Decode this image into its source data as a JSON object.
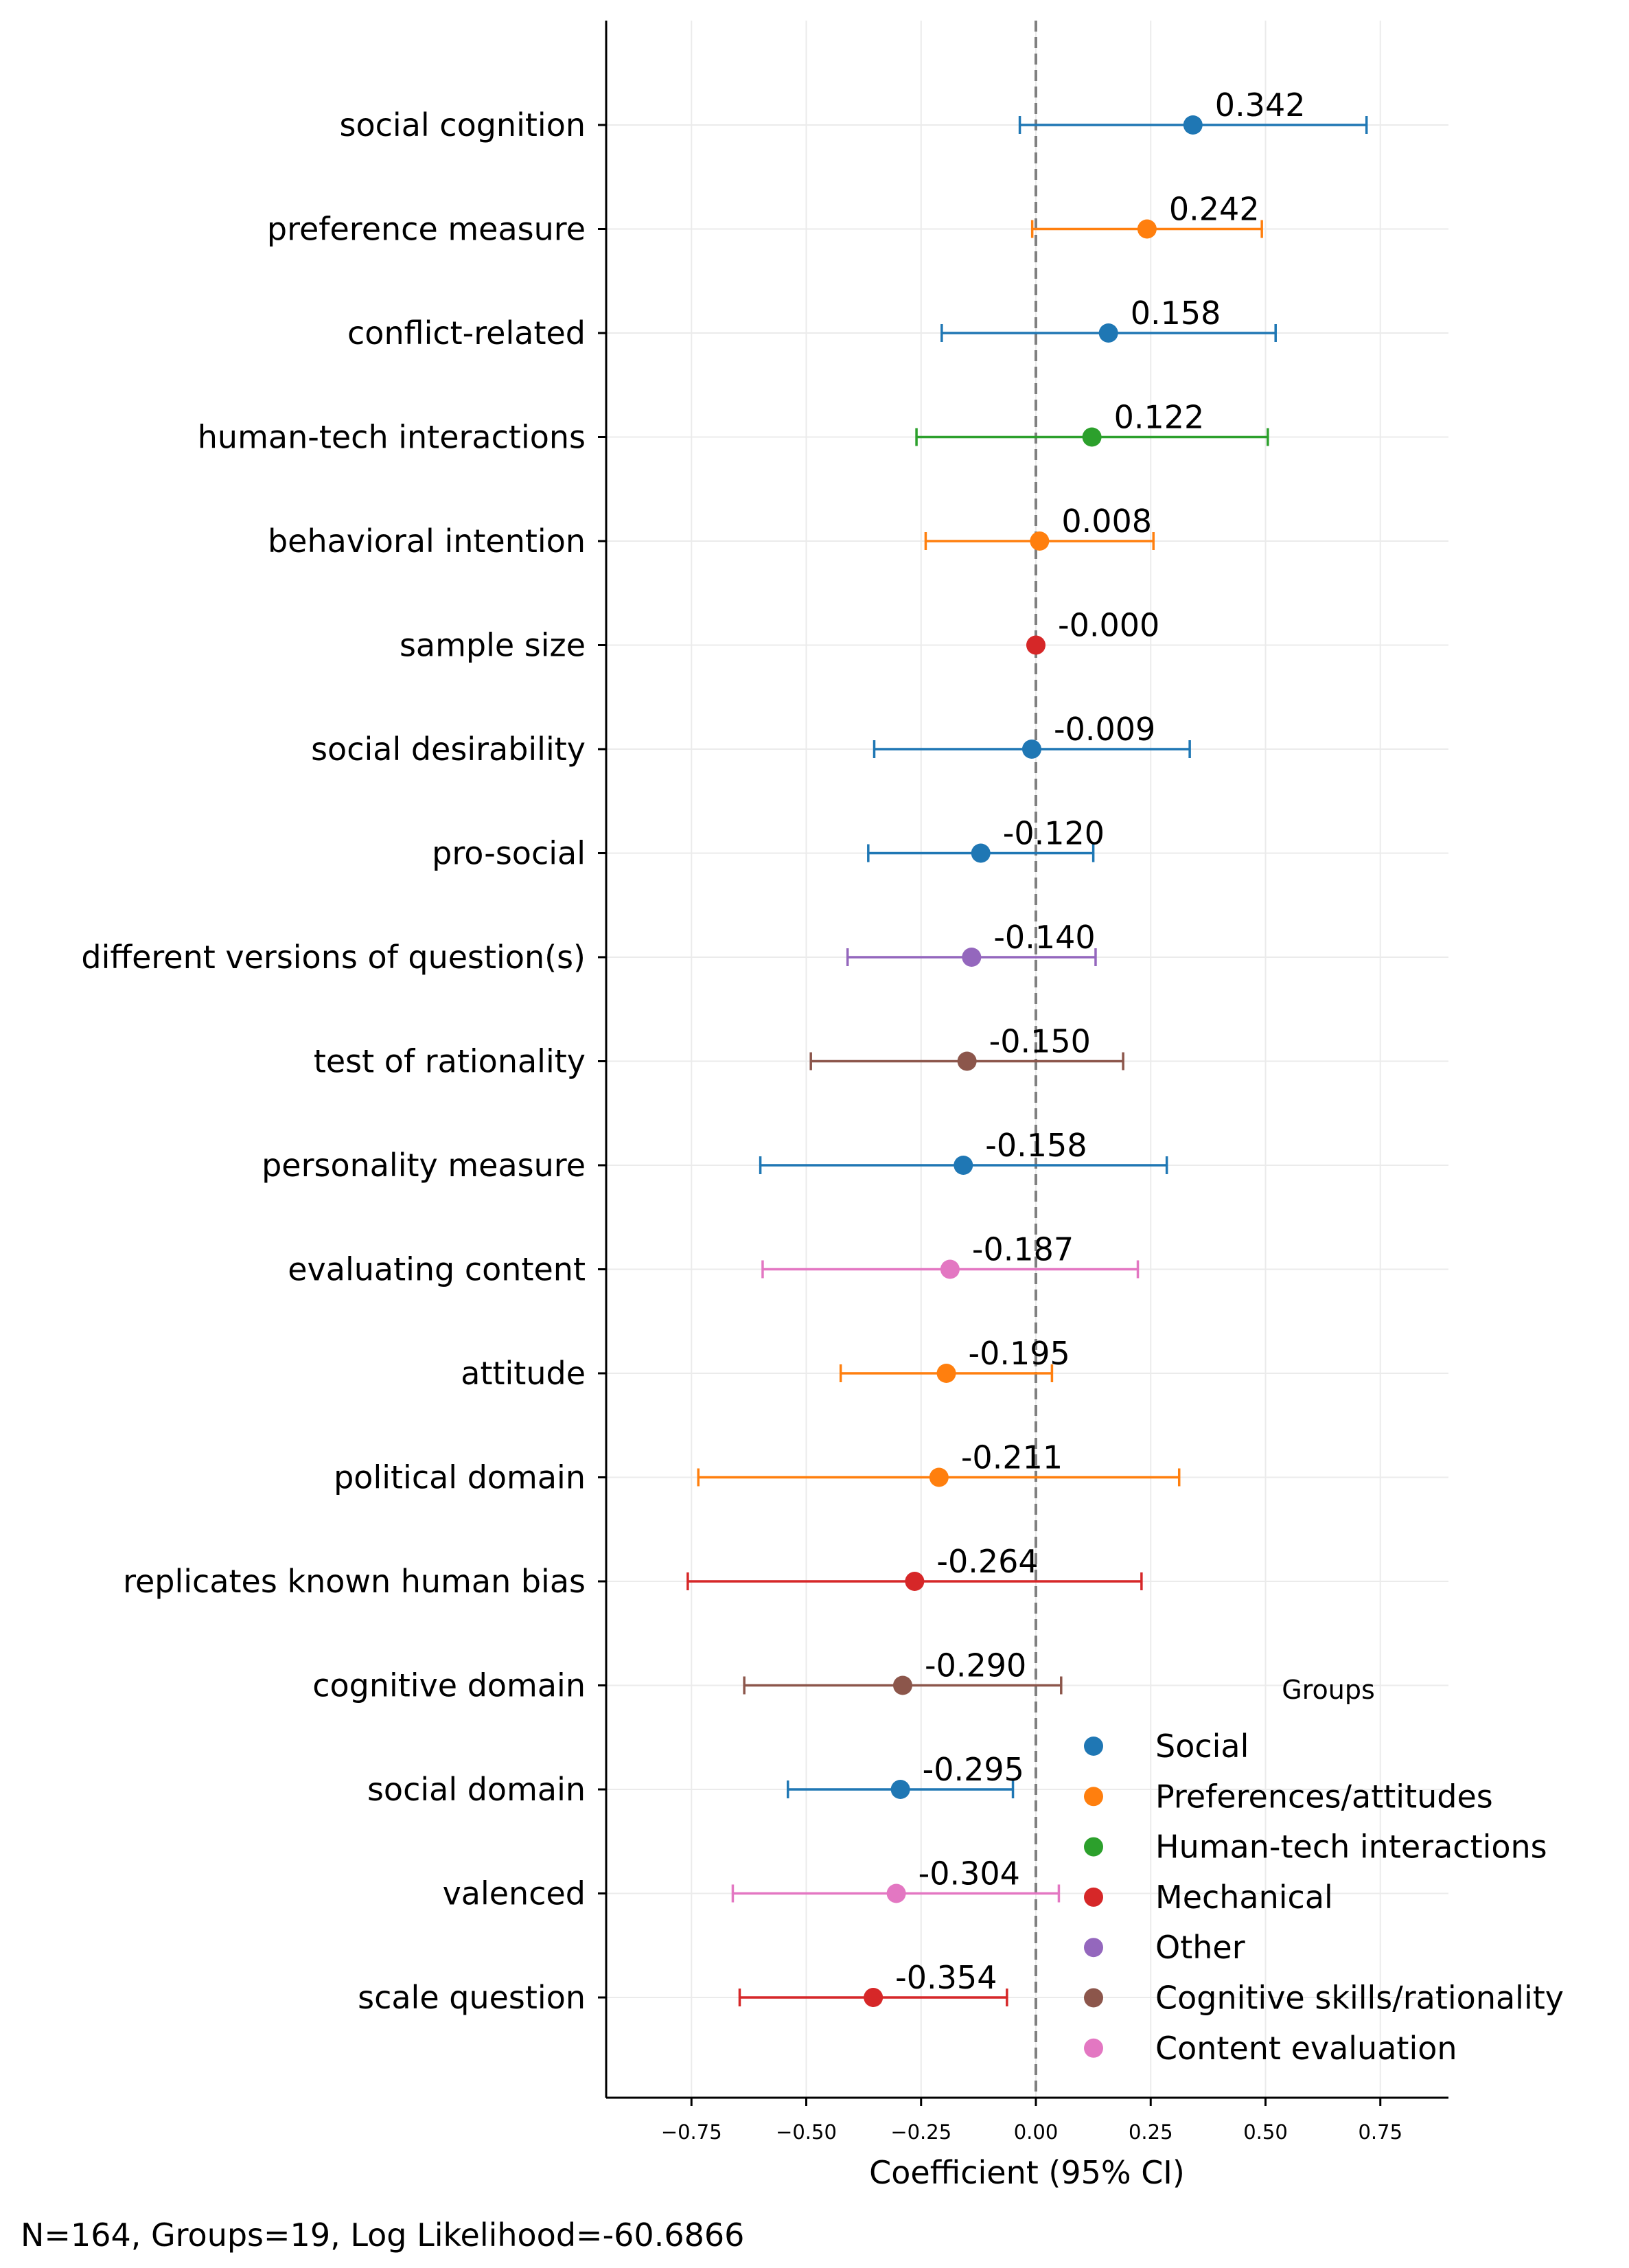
{
  "chart_data": {
    "type": "forest",
    "xlabel": "Coefficient (95% CI)",
    "xlim": [
      -0.93,
      0.9
    ],
    "xticks": [
      -0.75,
      -0.5,
      -0.25,
      0.0,
      0.25,
      0.5,
      0.75
    ],
    "xtick_labels": [
      "−0.75",
      "−0.50",
      "−0.25",
      "0.00",
      "0.25",
      "0.50",
      "0.75"
    ],
    "reference_line": 0,
    "grid": true,
    "legend": {
      "title": "Groups",
      "position": "bottom-right",
      "entries": [
        {
          "name": "Social",
          "color": "#1f77b4"
        },
        {
          "name": "Preferences/attitudes",
          "color": "#ff7f0e"
        },
        {
          "name": "Human-tech interactions",
          "color": "#2ca02c"
        },
        {
          "name": "Mechanical",
          "color": "#d62728"
        },
        {
          "name": "Other",
          "color": "#9467bd"
        },
        {
          "name": "Cognitive skills/rationality",
          "color": "#8c564b"
        },
        {
          "name": "Content evaluation",
          "color": "#e377c2"
        }
      ]
    },
    "rows": [
      {
        "label": "social cognition",
        "coef": 0.342,
        "ci": [
          -0.035,
          0.72
        ],
        "coef_label": "0.342",
        "group": "Social"
      },
      {
        "label": "preference measure",
        "coef": 0.242,
        "ci": [
          -0.008,
          0.492
        ],
        "coef_label": "0.242",
        "group": "Preferences/attitudes"
      },
      {
        "label": "conflict-related",
        "coef": 0.158,
        "ci": [
          -0.205,
          0.522
        ],
        "coef_label": "0.158",
        "group": "Social"
      },
      {
        "label": "human-tech interactions",
        "coef": 0.122,
        "ci": [
          -0.26,
          0.505
        ],
        "coef_label": "0.122",
        "group": "Human-tech interactions"
      },
      {
        "label": "behavioral intention",
        "coef": 0.008,
        "ci": [
          -0.24,
          0.256
        ],
        "coef_label": "0.008",
        "group": "Preferences/attitudes"
      },
      {
        "label": "sample size",
        "coef": -0.0,
        "ci": [
          -0.0005,
          0.0005
        ],
        "coef_label": "-0.000",
        "group": "Mechanical"
      },
      {
        "label": "social desirability",
        "coef": -0.009,
        "ci": [
          -0.352,
          0.335
        ],
        "coef_label": "-0.009",
        "group": "Social"
      },
      {
        "label": "pro-social",
        "coef": -0.12,
        "ci": [
          -0.365,
          0.125
        ],
        "coef_label": "-0.120",
        "group": "Social"
      },
      {
        "label": "different versions of question(s)",
        "coef": -0.14,
        "ci": [
          -0.41,
          0.13
        ],
        "coef_label": "-0.140",
        "group": "Other"
      },
      {
        "label": "test of rationality",
        "coef": -0.15,
        "ci": [
          -0.49,
          0.19
        ],
        "coef_label": "-0.150",
        "group": "Cognitive skills/rationality"
      },
      {
        "label": "personality measure",
        "coef": -0.158,
        "ci": [
          -0.6,
          0.285
        ],
        "coef_label": "-0.158",
        "group": "Social"
      },
      {
        "label": "evaluating content",
        "coef": -0.187,
        "ci": [
          -0.595,
          0.222
        ],
        "coef_label": "-0.187",
        "group": "Content evaluation"
      },
      {
        "label": "attitude",
        "coef": -0.195,
        "ci": [
          -0.425,
          0.035
        ],
        "coef_label": "-0.195",
        "group": "Preferences/attitudes"
      },
      {
        "label": "political domain",
        "coef": -0.211,
        "ci": [
          -0.735,
          0.312
        ],
        "coef_label": "-0.211",
        "group": "Preferences/attitudes"
      },
      {
        "label": "replicates known human bias",
        "coef": -0.264,
        "ci": [
          -0.758,
          0.23
        ],
        "coef_label": "-0.264",
        "group": "Mechanical"
      },
      {
        "label": "cognitive domain",
        "coef": -0.29,
        "ci": [
          -0.635,
          0.055
        ],
        "coef_label": "-0.290",
        "group": "Cognitive skills/rationality"
      },
      {
        "label": "social domain",
        "coef": -0.295,
        "ci": [
          -0.54,
          -0.05
        ],
        "coef_label": "-0.295",
        "group": "Social"
      },
      {
        "label": "valenced",
        "coef": -0.304,
        "ci": [
          -0.66,
          0.05
        ],
        "coef_label": "-0.304",
        "group": "Content evaluation"
      },
      {
        "label": "scale question",
        "coef": -0.354,
        "ci": [
          -0.645,
          -0.063
        ],
        "coef_label": "-0.354",
        "group": "Mechanical"
      }
    ]
  },
  "footnote": "N=164, Groups=19, Log Likelihood=-60.6866"
}
